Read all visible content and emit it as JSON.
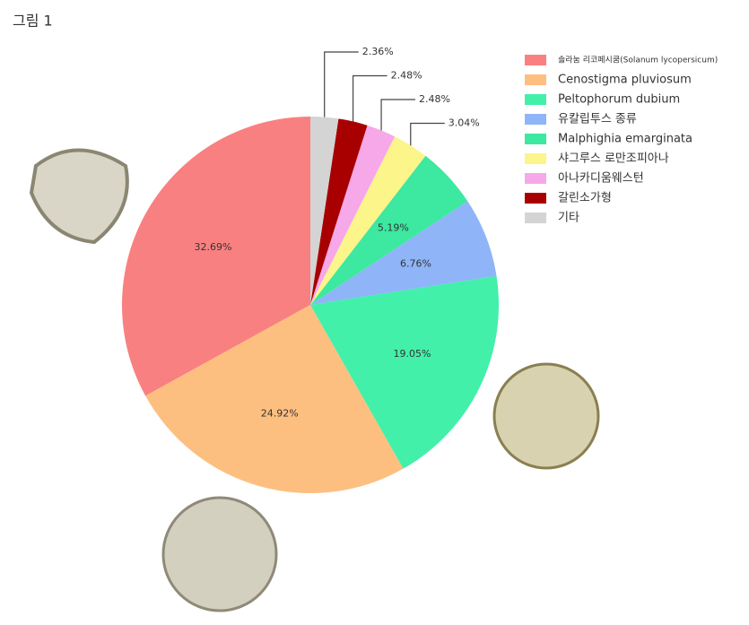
{
  "chart_data": {
    "type": "pie",
    "title": "그림 1",
    "categories": [
      "솔라눔 리코페시쿰(Solanum lycopersicum)",
      "Cenostigma pluviosum",
      "Peltophorum dubium",
      "유칼립투스 종류",
      "Malphighia emarginata",
      "샤그루스 로만조피아나",
      "아나카디움웨스턴",
      "갈린소가형",
      "기타"
    ],
    "values": [
      32.69,
      24.92,
      19.05,
      6.76,
      5.19,
      3.04,
      2.48,
      2.48,
      2.36
    ],
    "value_labels": [
      "32.69%",
      "24.92%",
      "19.05%",
      "6.76%",
      "5.19%",
      "3.04%",
      "2.48%",
      "2.48%",
      "2.36%"
    ],
    "colors": [
      "#f98080",
      "#fdbf80",
      "#42f0aa",
      "#8fb4f8",
      "#3de8a0",
      "#fbf58a",
      "#f7a8e8",
      "#a80000",
      "#d4d4d4"
    ],
    "legend": "top-right"
  }
}
